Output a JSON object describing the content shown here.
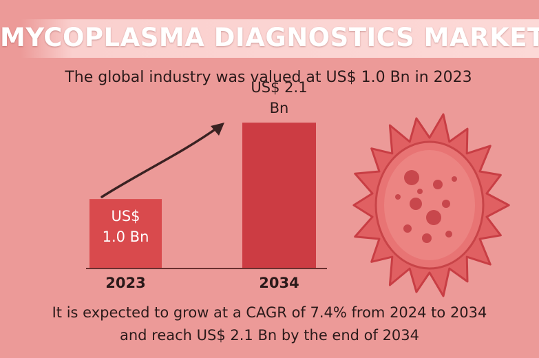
{
  "title": "MYCOPLASMA DIAGNOSTICS MARKET",
  "subtitle": "The global industry was valued at US$ 1.0 Bn in 2023",
  "footer": {
    "line1": "It is expected to grow at a CAGR of 7.4% from 2024 to 2034",
    "line2": "and reach US$ 2.1 Bn by the end of 2034"
  },
  "chart_data": {
    "type": "bar",
    "title": "",
    "xlabel": "",
    "ylabel": "",
    "categories": [
      "2023",
      "2034"
    ],
    "values": [
      1.0,
      2.1
    ],
    "data_labels": [
      [
        "US$",
        "1.0 Bn"
      ],
      [
        "US$ 2.1",
        "Bn"
      ]
    ],
    "unit": "US$ Bn",
    "ylim": [
      0,
      2.3
    ],
    "grid": false,
    "legend": "none",
    "colors": {
      "bar_2023": "#d94a4d",
      "bar_2034": "#cc3c43",
      "axis": "#6a3030",
      "arrow": "#3a2222"
    }
  },
  "decor": {
    "microbe_icon": "mycoplasma-cell-icon",
    "trend_icon": "trend-arrow-icon"
  }
}
